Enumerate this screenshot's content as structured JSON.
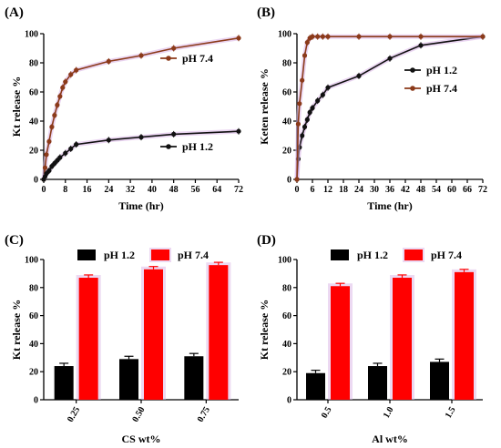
{
  "colors": {
    "ph12": "#111111",
    "ph74": "#8B3A1A",
    "bar12": "#000000",
    "bar74": "#ff0000",
    "halo": "#d9b3e6"
  },
  "chart_data": [
    {
      "panel": "(A)",
      "type": "line",
      "xlabel": "Time (hr)",
      "ylabel": "Kt release %",
      "xlim": [
        0,
        72
      ],
      "ylim": [
        0,
        100
      ],
      "xticks": [
        0,
        8,
        16,
        24,
        32,
        40,
        48,
        56,
        64,
        72
      ],
      "yticks": [
        0,
        20,
        40,
        60,
        80,
        100
      ],
      "legend": "right",
      "series": [
        {
          "name": "pH 7.4",
          "color": "#8B3A1A",
          "x": [
            0,
            0.5,
            1,
            2,
            3,
            4,
            5,
            6,
            7,
            8,
            10,
            12,
            24,
            36,
            48,
            72
          ],
          "y": [
            0,
            8,
            17,
            26,
            36,
            44,
            51,
            57,
            63,
            67,
            72,
            75,
            81,
            85,
            90,
            97
          ]
        },
        {
          "name": "pH 1.2",
          "color": "#111111",
          "x": [
            0,
            0.5,
            1,
            2,
            3,
            4,
            5,
            6,
            8,
            10,
            12,
            24,
            36,
            48,
            72
          ],
          "y": [
            0,
            2,
            4,
            6,
            9,
            11,
            13,
            15,
            18,
            21,
            24,
            27,
            29,
            31,
            33
          ]
        }
      ]
    },
    {
      "panel": "(B)",
      "type": "line",
      "xlabel": "Time (hr)",
      "ylabel": "Keten release %",
      "xlim": [
        0,
        72
      ],
      "ylim": [
        0,
        100
      ],
      "xticks": [
        0,
        6,
        12,
        18,
        24,
        30,
        36,
        42,
        48,
        54,
        60,
        66,
        72
      ],
      "yticks": [
        0,
        20,
        40,
        60,
        80,
        100
      ],
      "legend": "right",
      "series": [
        {
          "name": "pH 1.2",
          "color": "#111111",
          "x": [
            0,
            0.5,
            1,
            2,
            3,
            4,
            5,
            6,
            8,
            10,
            12,
            24,
            36,
            48,
            72
          ],
          "y": [
            0,
            14,
            22,
            30,
            36,
            41,
            46,
            49,
            54,
            58,
            63,
            71,
            83,
            92,
            98
          ]
        },
        {
          "name": "pH 7.4",
          "color": "#8B3A1A",
          "x": [
            0,
            0.5,
            1,
            2,
            3,
            4,
            5,
            6,
            8,
            10,
            12,
            24,
            36,
            48,
            72
          ],
          "y": [
            0,
            38,
            52,
            68,
            85,
            94,
            97,
            98,
            98,
            98,
            98,
            98,
            98,
            98,
            98
          ]
        }
      ]
    },
    {
      "panel": "(C)",
      "type": "bar",
      "xlabel": "CS wt%",
      "ylabel": "Kt release %",
      "ylim": [
        0,
        100
      ],
      "yticks": [
        0,
        20,
        40,
        60,
        80,
        100
      ],
      "categories": [
        "0.25",
        "0.50",
        "0.75"
      ],
      "legend": "top",
      "series": [
        {
          "name": "pH 1.2",
          "color": "#000000",
          "values": [
            24,
            29,
            31
          ],
          "errors": [
            2,
            2,
            2
          ]
        },
        {
          "name": "pH 7.4",
          "color": "#ff0000",
          "values": [
            87,
            93,
            96
          ],
          "errors": [
            2,
            2,
            2
          ]
        }
      ]
    },
    {
      "panel": "(D)",
      "type": "bar",
      "xlabel": "Al wt%",
      "ylabel": "Kt release %",
      "ylim": [
        0,
        100
      ],
      "yticks": [
        0,
        20,
        40,
        60,
        80,
        100
      ],
      "categories": [
        "0.5",
        "1.0",
        "1.5"
      ],
      "legend": "top",
      "series": [
        {
          "name": "pH 1.2",
          "color": "#000000",
          "values": [
            19,
            24,
            27
          ],
          "errors": [
            2,
            2,
            2
          ]
        },
        {
          "name": "pH 7.4",
          "color": "#ff0000",
          "values": [
            81,
            87,
            91
          ],
          "errors": [
            2,
            2,
            2
          ]
        }
      ]
    }
  ]
}
